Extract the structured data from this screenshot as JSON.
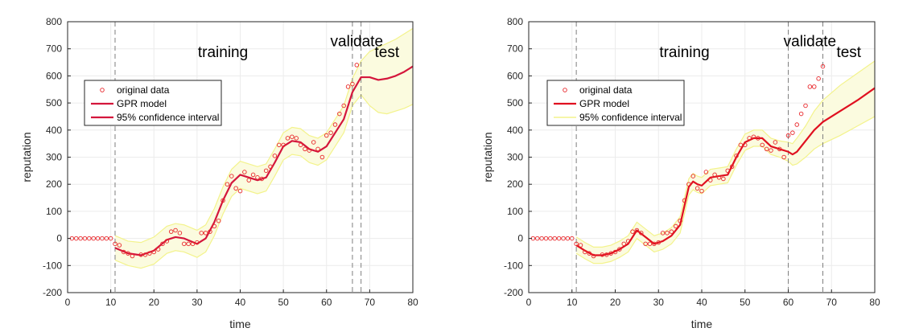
{
  "colors": {
    "data": "#e8262a",
    "model_red": "#e01020",
    "model_crimson": "#d4163c",
    "band_fill": "#fbfbdf",
    "band_edge": "#f3f38c",
    "axis": "#262626",
    "grid": "#ececec",
    "vline": "#7f7f7f"
  },
  "chart_data": [
    {
      "type": "line",
      "xlabel": "time",
      "ylabel": "reputation",
      "xlim": [
        0,
        80
      ],
      "ylim": [
        -200,
        800
      ],
      "xticks": [
        0,
        10,
        20,
        30,
        40,
        50,
        60,
        70,
        80
      ],
      "yticks": [
        -200,
        -100,
        0,
        100,
        200,
        300,
        400,
        500,
        600,
        700,
        800
      ],
      "grid": true,
      "legend_position": "left-middle",
      "legend": [
        "original data",
        "GPR model",
        "95% confidence interval"
      ],
      "region_labels": [
        {
          "text": "training",
          "x": 36,
          "y": 690
        },
        {
          "text": "validate",
          "x": 67,
          "y": 730
        },
        {
          "text": "test",
          "x": 74,
          "y": 690
        }
      ],
      "vlines": [
        11,
        66,
        68
      ],
      "series": [
        {
          "kind": "scatter",
          "x": [
            1,
            2,
            3,
            4,
            5,
            6,
            7,
            8,
            9,
            10,
            11,
            12,
            13,
            14,
            15,
            17,
            18,
            19,
            20,
            21,
            22,
            23,
            24,
            25,
            26,
            27,
            28,
            29,
            30,
            31,
            32,
            33,
            34,
            35,
            36,
            37,
            38,
            39,
            40,
            41,
            42,
            43,
            44,
            45,
            46,
            47,
            48,
            49,
            50,
            51,
            52,
            53,
            54,
            55,
            56,
            57,
            58,
            59,
            60,
            61,
            62,
            63,
            64,
            65,
            66,
            67
          ],
          "y": [
            0,
            0,
            0,
            0,
            0,
            0,
            0,
            0,
            0,
            0,
            -20,
            -25,
            -50,
            -55,
            -65,
            -60,
            -60,
            -55,
            -50,
            -40,
            -20,
            -10,
            25,
            30,
            20,
            -20,
            -20,
            -20,
            -15,
            20,
            20,
            25,
            45,
            65,
            140,
            200,
            230,
            185,
            175,
            245,
            215,
            235,
            225,
            220,
            250,
            265,
            305,
            345,
            345,
            370,
            375,
            370,
            345,
            330,
            325,
            355,
            330,
            300,
            380,
            390,
            420,
            460,
            490,
            560,
            570,
            640
          ]
        },
        {
          "kind": "line",
          "x": [
            11,
            14,
            17,
            20,
            23,
            25,
            27,
            30,
            32,
            34,
            36,
            38,
            40,
            42,
            44,
            46,
            48,
            50,
            52,
            54,
            56,
            58,
            60,
            62,
            64,
            66,
            68,
            70,
            72,
            74,
            76,
            78,
            80
          ],
          "y": [
            -35,
            -55,
            -62,
            -45,
            -5,
            5,
            0,
            -20,
            0,
            60,
            140,
            205,
            235,
            225,
            215,
            225,
            280,
            340,
            360,
            355,
            330,
            320,
            340,
            390,
            440,
            540,
            595,
            595,
            585,
            590,
            600,
            615,
            635
          ]
        },
        {
          "kind": "band",
          "x": [
            11,
            14,
            17,
            20,
            23,
            25,
            27,
            30,
            32,
            34,
            36,
            38,
            40,
            42,
            44,
            46,
            48,
            50,
            52,
            54,
            56,
            58,
            60,
            62,
            64,
            66,
            68,
            70,
            72,
            74,
            76,
            78,
            80
          ],
          "lower": [
            -80,
            -100,
            -110,
            -95,
            -55,
            -45,
            -50,
            -70,
            -50,
            10,
            90,
            155,
            185,
            175,
            165,
            175,
            230,
            290,
            310,
            305,
            280,
            270,
            290,
            340,
            390,
            490,
            530,
            490,
            465,
            460,
            470,
            480,
            495
          ],
          "upper": [
            10,
            -10,
            -15,
            5,
            45,
            55,
            50,
            30,
            50,
            110,
            190,
            255,
            285,
            275,
            265,
            275,
            330,
            390,
            410,
            405,
            380,
            370,
            390,
            440,
            490,
            590,
            655,
            690,
            705,
            720,
            735,
            755,
            775
          ]
        }
      ]
    },
    {
      "type": "line",
      "xlabel": "time",
      "ylabel": "reputation",
      "xlim": [
        0,
        80
      ],
      "ylim": [
        -200,
        800
      ],
      "xticks": [
        0,
        10,
        20,
        30,
        40,
        50,
        60,
        70,
        80
      ],
      "yticks": [
        -200,
        -100,
        0,
        100,
        200,
        300,
        400,
        500,
        600,
        700,
        800
      ],
      "grid": true,
      "legend_position": "left-middle",
      "legend": [
        "original data",
        "GPR model",
        "95% confidence interval"
      ],
      "region_labels": [
        {
          "text": "training",
          "x": 36,
          "y": 690
        },
        {
          "text": "validate",
          "x": 65,
          "y": 730
        },
        {
          "text": "test",
          "x": 74,
          "y": 690
        }
      ],
      "vlines": [
        11,
        60,
        68
      ],
      "series": [
        {
          "kind": "scatter",
          "x": [
            1,
            2,
            3,
            4,
            5,
            6,
            7,
            8,
            9,
            10,
            11,
            12,
            13,
            14,
            15,
            17,
            18,
            19,
            20,
            21,
            22,
            23,
            24,
            25,
            26,
            27,
            28,
            29,
            30,
            31,
            32,
            33,
            34,
            35,
            36,
            37,
            38,
            39,
            40,
            41,
            42,
            43,
            44,
            45,
            46,
            47,
            48,
            49,
            50,
            51,
            52,
            53,
            54,
            55,
            56,
            57,
            58,
            59,
            60,
            61,
            62,
            63,
            64,
            65,
            66,
            67,
            68
          ],
          "y": [
            0,
            0,
            0,
            0,
            0,
            0,
            0,
            0,
            0,
            0,
            -20,
            -25,
            -50,
            -55,
            -65,
            -60,
            -60,
            -55,
            -50,
            -40,
            -20,
            -10,
            25,
            30,
            20,
            -20,
            -20,
            -20,
            -15,
            20,
            20,
            25,
            45,
            65,
            140,
            200,
            230,
            185,
            175,
            245,
            215,
            235,
            225,
            220,
            250,
            265,
            305,
            345,
            345,
            370,
            375,
            370,
            345,
            330,
            325,
            355,
            330,
            300,
            380,
            390,
            420,
            460,
            490,
            560,
            560,
            590,
            635
          ]
        },
        {
          "kind": "line",
          "x": [
            11,
            13,
            15,
            17,
            19,
            21,
            23,
            25,
            27,
            29,
            31,
            33,
            35,
            36,
            37,
            38,
            39,
            40,
            42,
            44,
            46,
            48,
            50,
            52,
            54,
            56,
            58,
            60,
            61,
            62,
            64,
            66,
            68,
            72,
            76,
            80
          ],
          "y": [
            -25,
            -45,
            -62,
            -62,
            -55,
            -40,
            -20,
            30,
            5,
            -20,
            -10,
            10,
            50,
            120,
            190,
            210,
            200,
            195,
            225,
            230,
            235,
            300,
            355,
            370,
            370,
            340,
            330,
            320,
            310,
            320,
            360,
            400,
            430,
            470,
            510,
            555
          ]
        },
        {
          "kind": "band",
          "x": [
            11,
            13,
            15,
            17,
            19,
            21,
            23,
            25,
            27,
            29,
            31,
            33,
            35,
            36,
            37,
            38,
            39,
            40,
            42,
            44,
            46,
            48,
            50,
            52,
            54,
            56,
            58,
            60,
            61,
            62,
            64,
            66,
            68,
            72,
            76,
            80
          ],
          "lower": [
            -55,
            -75,
            -92,
            -92,
            -85,
            -70,
            -50,
            0,
            -25,
            -50,
            -40,
            -20,
            20,
            90,
            160,
            180,
            170,
            165,
            195,
            200,
            205,
            270,
            325,
            340,
            340,
            310,
            300,
            285,
            270,
            275,
            300,
            330,
            350,
            380,
            415,
            450
          ],
          "upper": [
            5,
            -15,
            -32,
            -32,
            -25,
            -10,
            10,
            60,
            35,
            10,
            20,
            40,
            80,
            150,
            220,
            240,
            230,
            225,
            255,
            260,
            265,
            330,
            385,
            400,
            400,
            370,
            360,
            355,
            350,
            370,
            415,
            470,
            510,
            565,
            610,
            655
          ]
        }
      ]
    }
  ]
}
